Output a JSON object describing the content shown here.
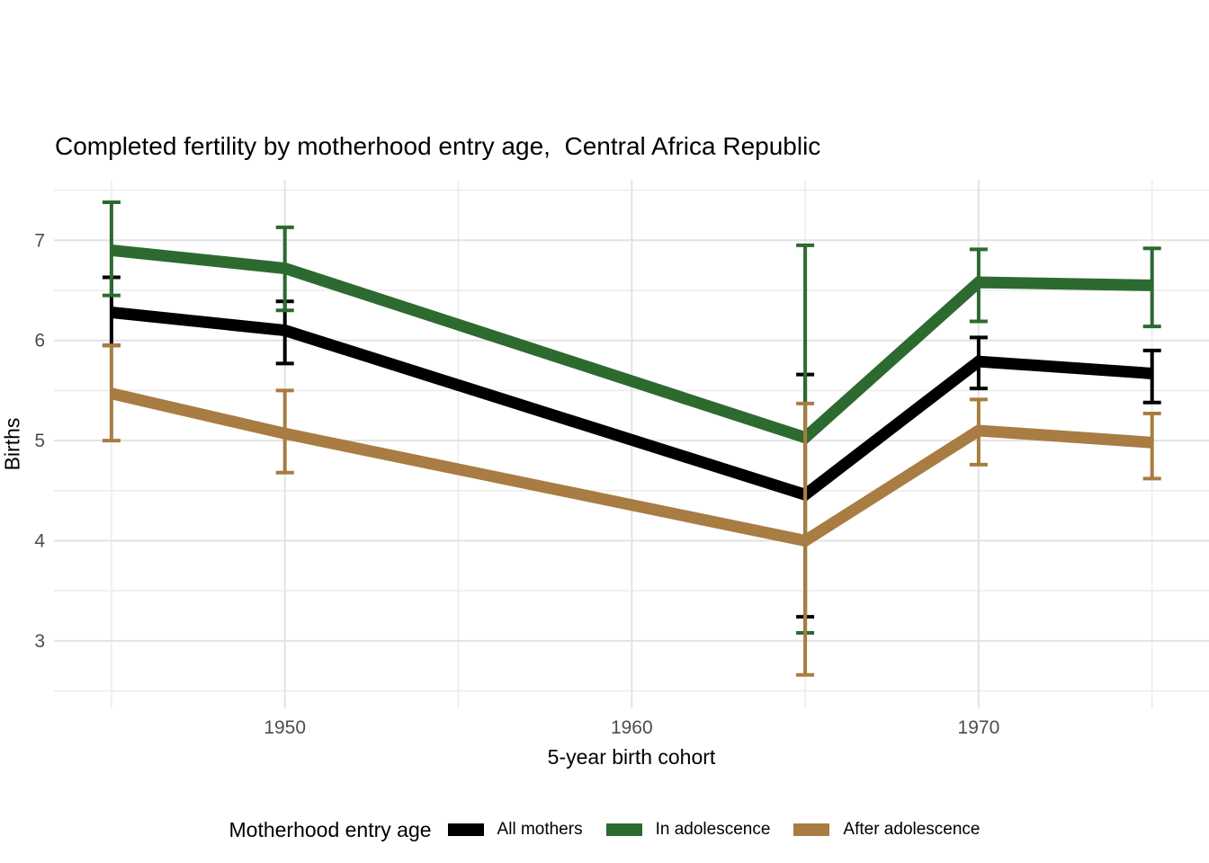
{
  "chart_data": {
    "type": "line",
    "title": "Completed fertility by motherhood entry age,  Central Africa Republic",
    "xlabel": "5-year birth cohort",
    "ylabel": "Births",
    "legend_title": "Motherhood entry age",
    "legend_position": "bottom",
    "grid": true,
    "x": [
      1945,
      1950,
      1965,
      1970,
      1975
    ],
    "x_ticks_labeled": [
      1950,
      1960,
      1970
    ],
    "x_gridlines_minor": [
      1945,
      1955,
      1965,
      1975
    ],
    "y_ticks": [
      3,
      4,
      5,
      6,
      7
    ],
    "y_gridlines_minor": [
      2.5,
      3.5,
      4.5,
      5.5,
      6.5,
      7.5
    ],
    "xlim": [
      1943.3,
      1977.0
    ],
    "ylim": [
      2.33,
      7.6
    ],
    "series": [
      {
        "name": "All mothers",
        "color": "#000000",
        "values": [
          6.28,
          6.1,
          4.46,
          5.79,
          5.67
        ],
        "ci_low": [
          5.95,
          5.77,
          3.24,
          5.52,
          5.38
        ],
        "ci_high": [
          6.63,
          6.39,
          5.66,
          6.03,
          5.9
        ]
      },
      {
        "name": "In adolescence",
        "color": "#2d6a30",
        "values": [
          6.9,
          6.72,
          5.03,
          6.58,
          6.55
        ],
        "ci_low": [
          6.45,
          6.3,
          3.08,
          6.19,
          6.14
        ],
        "ci_high": [
          7.38,
          7.13,
          6.95,
          6.91,
          6.92
        ]
      },
      {
        "name": "After adolescence",
        "color": "#a87c42",
        "values": [
          5.47,
          5.07,
          4.0,
          5.1,
          4.98
        ],
        "ci_low": [
          5.0,
          4.68,
          2.66,
          4.76,
          4.62
        ],
        "ci_high": [
          5.95,
          5.5,
          5.37,
          5.41,
          5.27
        ]
      }
    ],
    "style": {
      "grid_major_color": "#e3e3e3",
      "grid_minor_color": "#ececec",
      "tick_label_color": "#4d4d4d",
      "line_width": 13,
      "errorbar_width": 4,
      "errorbar_cap_halfwidth": 10
    }
  }
}
